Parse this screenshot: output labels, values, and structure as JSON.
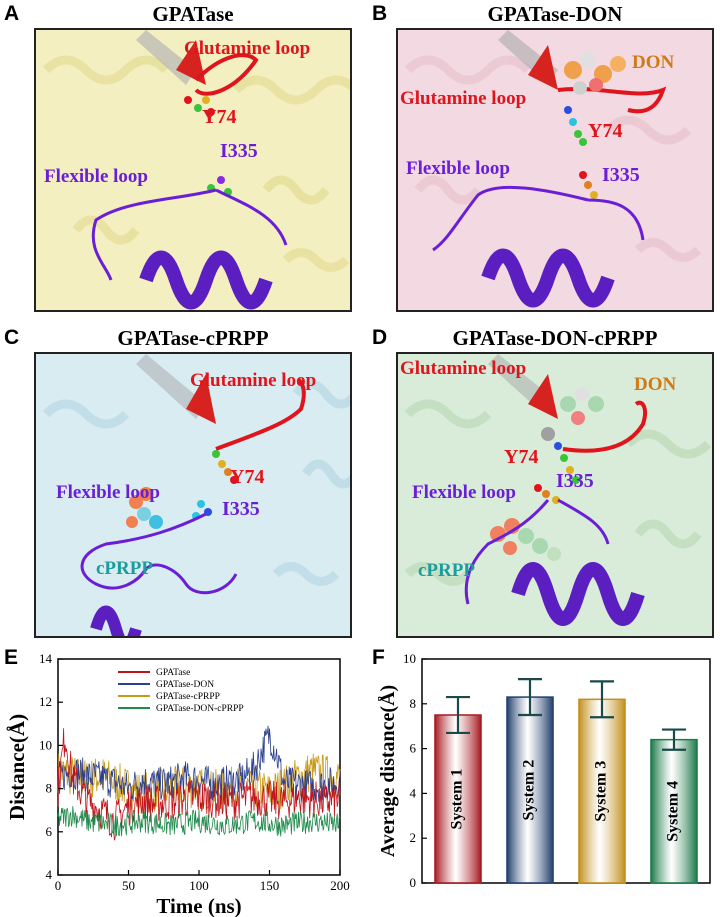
{
  "panels": {
    "A": {
      "letter": "A",
      "title": "GPATase",
      "tint": "#f3efc0",
      "labels": {
        "glutamine": "Glutamine loop",
        "y74": "Y74",
        "i335": "I335",
        "flexible": "Flexible loop"
      }
    },
    "B": {
      "letter": "B",
      "title": "GPATase-DON",
      "tint": "#f3d9e1",
      "labels": {
        "don": "DON",
        "glutamine": "Glutamine loop",
        "y74": "Y74",
        "flexible": "Flexible loop",
        "i335": "I335"
      }
    },
    "C": {
      "letter": "C",
      "title": "GPATase-cPRPP",
      "tint": "#d9ecf2",
      "labels": {
        "glutamine": "Glutamine loop",
        "y74": "Y74",
        "flexible": "Flexible loop",
        "i335": "I335",
        "cprpp": "cPRPP"
      }
    },
    "D": {
      "letter": "D",
      "title": "GPATase-DON-cPRPP",
      "tint": "#d9ecd9",
      "labels": {
        "glutamine": "Glutamine loop",
        "don": "DON",
        "y74": "Y74",
        "i335": "I335",
        "flexible": "Flexible loop",
        "cprpp": "cPRPP"
      }
    },
    "E": {
      "letter": "E"
    },
    "F": {
      "letter": "F"
    }
  },
  "chart_data": [
    {
      "type": "line",
      "panel": "E",
      "xlabel": "Time (ns)",
      "ylabel": "Distance(Å)",
      "xlim": [
        0,
        200
      ],
      "ylim": [
        4,
        14
      ],
      "xticks": [
        0,
        50,
        100,
        150,
        200
      ],
      "yticks": [
        4,
        6,
        8,
        10,
        12,
        14
      ],
      "legend_position": "top-center",
      "series": [
        {
          "name": "GPATase",
          "color": "#c0141c",
          "x": [
            0,
            5,
            10,
            20,
            30,
            40,
            50,
            60,
            70,
            80,
            90,
            100,
            110,
            120,
            130,
            140,
            150,
            160,
            170,
            180,
            190,
            200
          ],
          "y": [
            8.0,
            10.5,
            8.5,
            7.5,
            7.0,
            6.5,
            7.2,
            7.4,
            7.3,
            7.4,
            7.5,
            7.6,
            7.5,
            7.4,
            7.5,
            7.6,
            7.5,
            7.4,
            7.6,
            7.5,
            7.4,
            7.5
          ]
        },
        {
          "name": "GPATase-DON",
          "color": "#2a3f8f",
          "x": [
            0,
            10,
            20,
            30,
            40,
            50,
            60,
            70,
            80,
            90,
            100,
            110,
            120,
            130,
            140,
            145,
            150,
            155,
            160,
            170,
            180,
            190,
            200
          ],
          "y": [
            8.5,
            8.8,
            8.6,
            8.5,
            8.3,
            8.0,
            8.4,
            8.2,
            8.3,
            8.5,
            8.4,
            8.2,
            8.3,
            8.4,
            9.0,
            9.8,
            10.5,
            9.6,
            8.3,
            8.2,
            8.1,
            8.2,
            8.3
          ]
        },
        {
          "name": "GPATase-cPRPP",
          "color": "#c99a1a",
          "x": [
            0,
            10,
            20,
            30,
            40,
            50,
            60,
            70,
            80,
            90,
            100,
            110,
            120,
            130,
            140,
            150,
            160,
            170,
            180,
            190,
            200
          ],
          "y": [
            8.8,
            8.6,
            8.4,
            8.6,
            8.3,
            8.0,
            7.8,
            7.9,
            8.0,
            8.1,
            8.0,
            7.9,
            8.0,
            8.1,
            8.0,
            7.8,
            8.1,
            8.5,
            8.8,
            8.6,
            8.5
          ]
        },
        {
          "name": "GPATase-DON-cPRPP",
          "color": "#1f8a4c",
          "x": [
            0,
            10,
            20,
            30,
            40,
            50,
            60,
            70,
            80,
            90,
            100,
            110,
            120,
            130,
            140,
            150,
            160,
            170,
            180,
            190,
            200
          ],
          "y": [
            6.6,
            6.8,
            6.5,
            6.4,
            6.3,
            6.4,
            6.5,
            6.4,
            6.3,
            6.4,
            6.5,
            6.4,
            6.3,
            6.4,
            6.5,
            6.4,
            6.3,
            6.4,
            6.5,
            6.4,
            6.3
          ]
        }
      ]
    },
    {
      "type": "bar",
      "panel": "F",
      "ylabel": "Average distance(Å)",
      "ylim": [
        0,
        10
      ],
      "yticks": [
        0,
        2,
        4,
        6,
        8,
        10
      ],
      "categories": [
        "System 1",
        "System 2",
        "System 3",
        "System 4"
      ],
      "values": [
        7.5,
        8.3,
        8.2,
        6.4
      ],
      "errors": [
        0.8,
        0.8,
        0.8,
        0.45
      ],
      "colors": [
        "#a81c22",
        "#23406e",
        "#c3901e",
        "#1e7a4a"
      ]
    }
  ]
}
